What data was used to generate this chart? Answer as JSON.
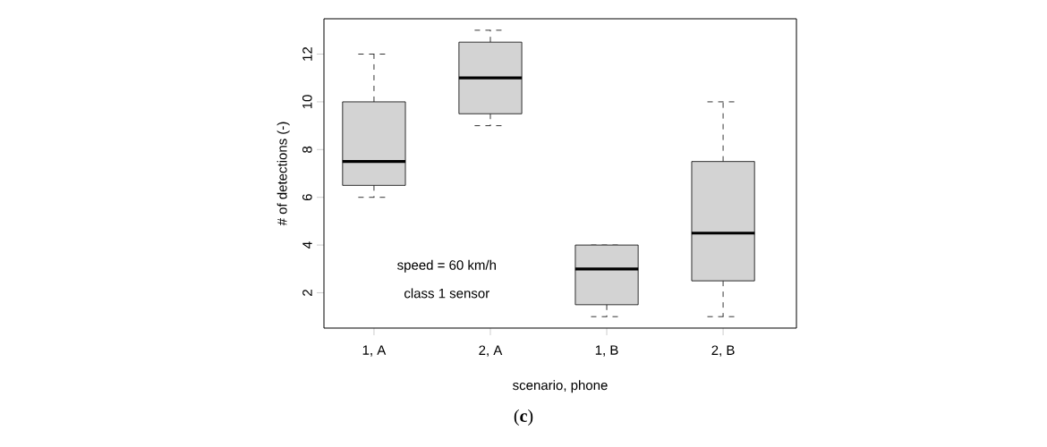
{
  "chart_data": {
    "type": "box",
    "categories": [
      "1, A",
      "2, A",
      "1, B",
      "2, B"
    ],
    "boxes": [
      {
        "low": 6,
        "q1": 6.5,
        "median": 7.5,
        "q3": 10,
        "high": 12
      },
      {
        "low": 9,
        "q1": 9.5,
        "median": 11,
        "q3": 12.5,
        "high": 13
      },
      {
        "low": 1,
        "q1": 1.5,
        "median": 3,
        "q3": 4,
        "high": 4
      },
      {
        "low": 1,
        "q1": 2.5,
        "median": 4.5,
        "q3": 7.5,
        "high": 10
      }
    ],
    "color": "#d3d3d3",
    "xlabel": "scenario, phone",
    "ylabel": "# of detections (-)",
    "ylim": [
      0.52,
      13.48
    ],
    "yticks": [
      2,
      4,
      6,
      8,
      10,
      12
    ],
    "line_style": "dashed",
    "grid": false,
    "annotations": [
      "speed = 60 km/h",
      "class 1 sensor",
      "(**c**)"
    ]
  }
}
